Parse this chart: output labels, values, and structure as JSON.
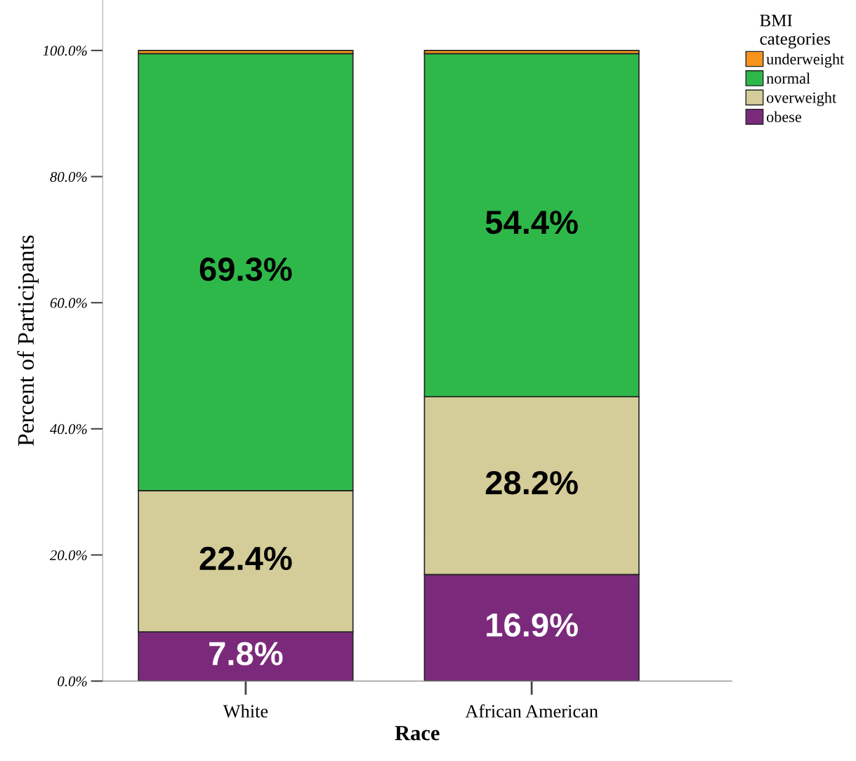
{
  "chart_data": {
    "type": "bar",
    "stacked": true,
    "xlabel": "Race",
    "ylabel": "Percent of Participants",
    "legend_title": "BMI\ncategories",
    "legend": "top right",
    "categories": [
      "White",
      "African American"
    ],
    "series": [
      {
        "name": "obese",
        "color": "#7b2a7b",
        "values": [
          7.8,
          16.9
        ],
        "value_labels": [
          "7.8%",
          "16.9%"
        ]
      },
      {
        "name": "overweight",
        "color": "#d4cd99",
        "values": [
          22.4,
          28.2
        ],
        "value_labels": [
          "22.4%",
          "28.2%"
        ]
      },
      {
        "name": "normal",
        "color": "#2fb84a",
        "values": [
          69.3,
          54.4
        ],
        "value_labels": [
          "69.3%",
          "54.4%"
        ]
      },
      {
        "name": "underweight",
        "color": "#f7941d",
        "values": [
          0.5,
          0.5
        ],
        "value_labels": [
          null,
          null
        ]
      }
    ],
    "ylim": [
      0,
      108
    ],
    "yticks": [
      {
        "value": 0,
        "label": "0.0%"
      },
      {
        "value": 20,
        "label": "20.0%"
      },
      {
        "value": 40,
        "label": "40.0%"
      },
      {
        "value": 60,
        "label": "60.0%"
      },
      {
        "value": 80,
        "label": "80.0%"
      },
      {
        "value": 100,
        "label": "100.0%"
      }
    ],
    "grid": false
  }
}
